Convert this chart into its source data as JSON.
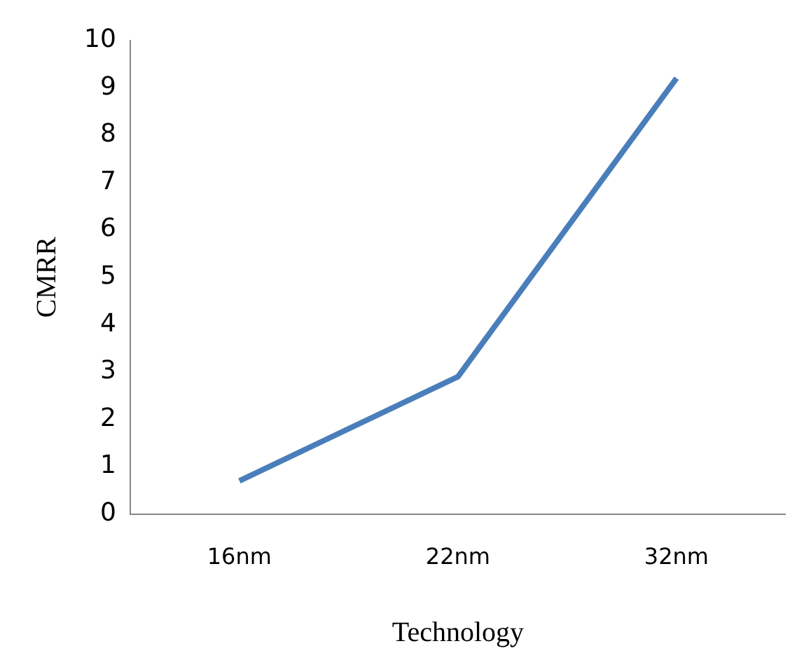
{
  "chart_data": {
    "type": "line",
    "xlabel": "Technology",
    "ylabel": "CMRR",
    "categories": [
      "16nm",
      "22nm",
      "32nm"
    ],
    "series": [
      {
        "color": "#4a7ebb",
        "values": [
          0.7,
          2.9,
          9.2
        ]
      }
    ],
    "ylim": [
      0,
      10
    ],
    "yticks": [
      0,
      1,
      2,
      3,
      4,
      5,
      6,
      7,
      8,
      9,
      10
    ],
    "grid": false,
    "legend": false
  }
}
